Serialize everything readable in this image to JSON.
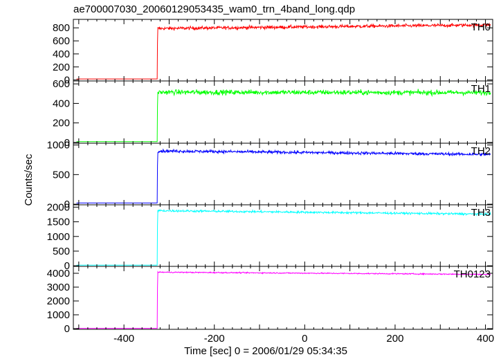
{
  "title": "ae700007030_20060129053435_wam0_trn_4band_long.qdp",
  "ylabel": "Counts/sec",
  "xlabel": "Time [sec] 0 = 2006/01/29 05:34:35",
  "chart_data": {
    "type": "line",
    "title": "ae700007030_20060129053435_wam0_trn_4band_long.qdp",
    "xlabel": "Time [sec] 0 = 2006/01/29 05:34:35",
    "ylabel": "Counts/sec",
    "xlim": [
      -512,
      416
    ],
    "xticks": [
      -400,
      -200,
      0,
      200,
      400
    ],
    "trigger_time": -326,
    "grid": false,
    "panels": [
      {
        "name": "TH0",
        "color": "#ff0000",
        "ylim": [
          -15,
          930
        ],
        "yticks": [
          0,
          200,
          400,
          600,
          800
        ],
        "pre_level": 15,
        "post_start": 790,
        "post_end": 845,
        "noise": 25
      },
      {
        "name": "TH1",
        "color": "#00ff00",
        "ylim": [
          -8,
          630
        ],
        "yticks": [
          0,
          200,
          400,
          600
        ],
        "pre_level": 8,
        "post_start": 515,
        "post_end": 510,
        "noise": 25
      },
      {
        "name": "TH2",
        "color": "#0000ff",
        "ylim": [
          -10,
          1030
        ],
        "yticks": [
          0,
          500,
          1000
        ],
        "pre_level": 20,
        "post_start": 900,
        "post_end": 840,
        "noise": 25
      },
      {
        "name": "TH3",
        "color": "#00ffff",
        "ylim": [
          -20,
          2080
        ],
        "yticks": [
          0,
          500,
          1000,
          1500,
          2000
        ],
        "pre_level": 20,
        "post_start": 1880,
        "post_end": 1760,
        "noise": 35
      },
      {
        "name": "TH0123",
        "color": "#ff00ff",
        "ylim": [
          -50,
          4500
        ],
        "yticks": [
          0,
          1000,
          2000,
          3000,
          4000
        ],
        "pre_level": 20,
        "post_start": 4080,
        "post_end": 3920,
        "noise": 40
      }
    ]
  }
}
